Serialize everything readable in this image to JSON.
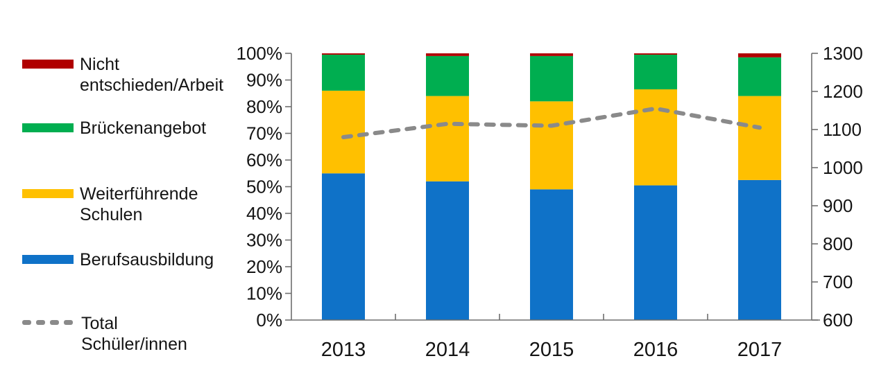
{
  "legend": {
    "items": [
      {
        "label_lines": [
          "Nicht",
          "entschieden/Arbeit"
        ],
        "color": "#b00000",
        "swatch": "box"
      },
      {
        "label_lines": [
          "Brückenangebot",
          ""
        ],
        "color": "#00ae50",
        "swatch": "box"
      },
      {
        "label_lines": [
          "Weiterführende",
          "Schulen"
        ],
        "color": "#ffc000",
        "swatch": "box"
      },
      {
        "label_lines": [
          "Berufsausbildung",
          ""
        ],
        "color": "#0f72c8",
        "swatch": "box"
      },
      {
        "label_lines": [
          "Total",
          "Schüler/innen"
        ],
        "color": "#8a8a8a",
        "swatch": "dash"
      }
    ]
  },
  "chart_data": {
    "type": "bar",
    "subtype": "stacked-bar-with-line",
    "title": "",
    "categories": [
      "2013",
      "2014",
      "2015",
      "2016",
      "2017"
    ],
    "bar_series": [
      {
        "name": "Berufsausbildung",
        "color": "#0f72c8",
        "values": [
          55,
          52,
          49,
          50.5,
          52.5
        ]
      },
      {
        "name": "Weiterführende Schulen",
        "color": "#ffc000",
        "values": [
          31,
          32,
          33,
          36,
          31.5
        ]
      },
      {
        "name": "Brückenangebot",
        "color": "#00ae50",
        "values": [
          13.5,
          15,
          17,
          13,
          14.5
        ]
      },
      {
        "name": "Nicht entschieden/Arbeit",
        "color": "#b00000",
        "values": [
          0.5,
          1,
          1,
          0.5,
          1.5
        ]
      }
    ],
    "line_series": {
      "name": "Total Schüler/innen",
      "color": "#8a8a8a",
      "style": "dashed",
      "axis": "right",
      "values": [
        1080,
        1115,
        1110,
        1155,
        1105
      ]
    },
    "axes": {
      "left": {
        "min": 0,
        "max": 100,
        "step": 10,
        "unit": "%",
        "ticks": [
          "0%",
          "10%",
          "20%",
          "30%",
          "40%",
          "50%",
          "60%",
          "70%",
          "80%",
          "90%",
          "100%"
        ]
      },
      "right": {
        "min": 600,
        "max": 1300,
        "step": 100,
        "ticks": [
          "600",
          "700",
          "800",
          "900",
          "1000",
          "1100",
          "1200",
          "1300"
        ]
      }
    },
    "grid": false,
    "legend_position": "left"
  }
}
